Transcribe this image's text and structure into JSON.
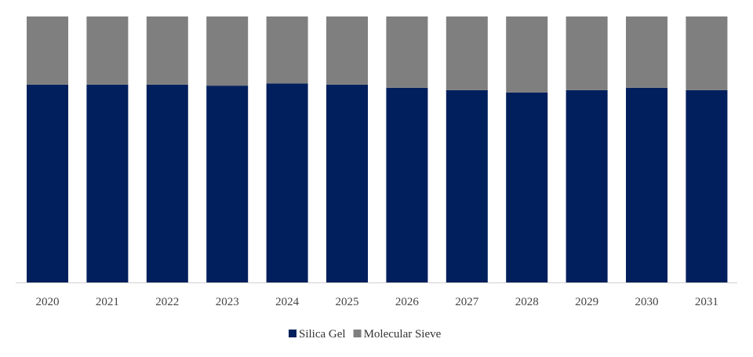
{
  "chart_data": {
    "type": "bar",
    "stacked": true,
    "percent": true,
    "title": "",
    "xlabel": "",
    "ylabel": "",
    "ylim": [
      0,
      100
    ],
    "grid": false,
    "legend_position": "bottom-center",
    "categories": [
      "2020",
      "2021",
      "2022",
      "2023",
      "2024",
      "2025",
      "2026",
      "2027",
      "2028",
      "2029",
      "2030",
      "2031"
    ],
    "series": [
      {
        "name": "Silica Gel",
        "color": "#001f5c",
        "values": [
          74.4,
          74.4,
          74.4,
          74.0,
          74.8,
          74.4,
          73.2,
          72.3,
          71.4,
          72.3,
          73.2,
          72.3
        ]
      },
      {
        "name": "Molecular Sieve",
        "color": "#7f7f7f",
        "values": [
          25.6,
          25.6,
          25.6,
          26.0,
          25.2,
          25.6,
          26.8,
          27.7,
          28.6,
          27.7,
          26.8,
          27.7
        ]
      }
    ]
  }
}
